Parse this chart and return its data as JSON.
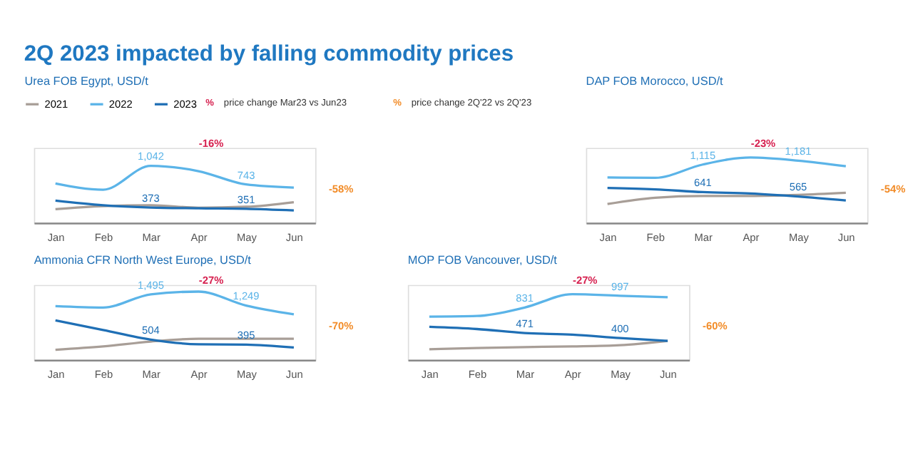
{
  "chart_data": [
    {
      "type": "line",
      "title": "2Q 2023 impacted by falling commodity prices",
      "subtitle": "Urea FOB Egypt, USD/t",
      "categories": [
        "Jan",
        "Feb",
        "Mar",
        "Apr",
        "May",
        "Jun"
      ],
      "ylim": [
        126,
        1330
      ],
      "tick_labels": "x",
      "legend": "top",
      "marker": "none",
      "series": [
        {
          "name": "2021",
          "color": "#a89e97",
          "values": [
            345,
            395,
            410,
            370,
            385,
            459
          ]
        },
        {
          "name": "2022",
          "color": "#5bb4e8",
          "values": [
            758,
            659,
            1042,
            957,
            743,
            693
          ],
          "value_labels": [
            null,
            null,
            "1,042",
            null,
            "743",
            null
          ]
        },
        {
          "name": "2023",
          "color": "#1f6fb5",
          "values": [
            484,
            410,
            373,
            360,
            351,
            325
          ],
          "value_labels": [
            null,
            null,
            "373",
            null,
            "351",
            null
          ]
        }
      ],
      "annotations": [
        "-16%",
        "-58%",
        "%",
        "price change Mar23 vs Jun23",
        "%",
        "price change 2Q'22 vs 2Q'23"
      ]
    },
    {
      "type": "line",
      "subtitle": "DAP FOB Morocco, USD/t",
      "categories": [
        "Jan",
        "Feb",
        "Mar",
        "Apr",
        "May",
        "Jun"
      ],
      "ylim": [
        113,
        1400
      ],
      "tick_labels": "x",
      "marker": "none",
      "series": [
        {
          "name": "2021",
          "color": "#a89e97",
          "values": [
            437,
            545,
            575,
            575,
            593,
            629
          ]
        },
        {
          "name": "2022",
          "color": "#5bb4e8",
          "values": [
            893,
            887,
            1115,
            1235,
            1181,
            1085
          ],
          "value_labels": [
            null,
            null,
            "1,115",
            null,
            "1,181",
            null
          ]
        },
        {
          "name": "2023",
          "color": "#1f6fb5",
          "values": [
            713,
            689,
            641,
            617,
            565,
            497
          ],
          "value_labels": [
            null,
            null,
            "641",
            null,
            "565",
            null
          ]
        }
      ],
      "annotations": [
        "-23%",
        "-54%"
      ]
    },
    {
      "type": "line",
      "subtitle": "Ammonia CFR North West Europe, USD/t",
      "categories": [
        "Jan",
        "Feb",
        "Mar",
        "Apr",
        "May",
        "Jun"
      ],
      "ylim": [
        60,
        1700
      ],
      "tick_labels": "x",
      "marker": "none",
      "series": [
        {
          "name": "2021",
          "color": "#a89e97",
          "values": [
            283,
            355,
            463,
            523,
            523,
            523
          ]
        },
        {
          "name": "2022",
          "color": "#5bb4e8",
          "values": [
            1237,
            1207,
            1495,
            1555,
            1249,
            1057
          ],
          "value_labels": [
            null,
            null,
            "1,495",
            null,
            "1,249",
            null
          ]
        },
        {
          "name": "2023",
          "color": "#1f6fb5",
          "values": [
            925,
            715,
            504,
            403,
            395,
            331
          ],
          "value_labels": [
            null,
            null,
            "504",
            null,
            "395",
            null
          ]
        }
      ],
      "annotations": [
        "-27%",
        "-70%"
      ]
    },
    {
      "type": "line",
      "subtitle": "MOP FOB Vancouver, USD/t",
      "categories": [
        "Jan",
        "Feb",
        "Mar",
        "Apr",
        "May",
        "Jun"
      ],
      "ylim": [
        90,
        1150
      ],
      "tick_labels": "x",
      "marker": "none",
      "series": [
        {
          "name": "2021",
          "color": "#a89e97",
          "values": [
            241,
            259,
            272,
            281,
            299,
            360
          ]
        },
        {
          "name": "2022",
          "color": "#5bb4e8",
          "values": [
            703,
            712,
            831,
            1020,
            997,
            976
          ],
          "value_labels": [
            null,
            null,
            "831",
            null,
            "997",
            null
          ]
        },
        {
          "name": "2023",
          "color": "#1f6fb5",
          "values": [
            558,
            527,
            471,
            448,
            400,
            360
          ],
          "value_labels": [
            null,
            null,
            "471",
            null,
            "400",
            null
          ]
        }
      ],
      "annotations": [
        "-27%",
        "-60%"
      ]
    }
  ]
}
